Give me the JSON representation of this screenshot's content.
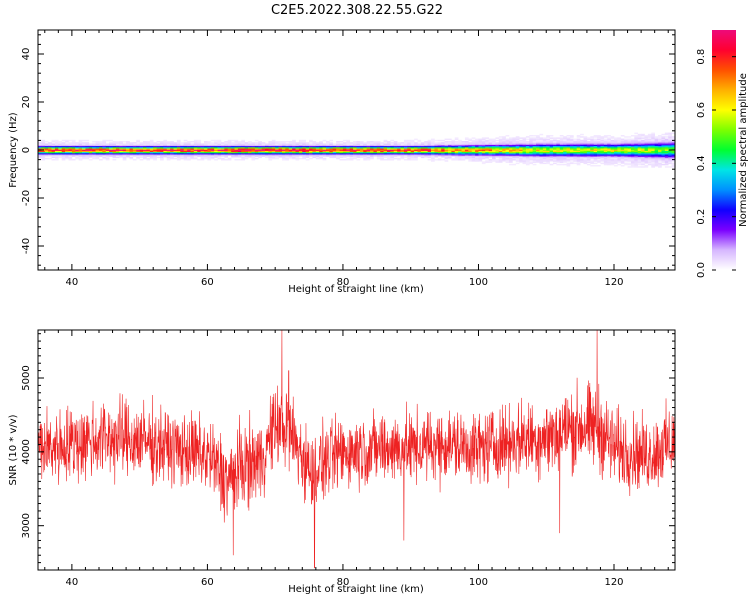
{
  "figure": {
    "title": "C2E5.2022.308.22.55.G22"
  },
  "colors": {
    "snr_line": "#ee2222",
    "axis": "#000000",
    "colormap": [
      "#ffffff",
      "#d6b6ff",
      "#7b00ff",
      "#1000ff",
      "#0090ff",
      "#00e5e5",
      "#00ff30",
      "#7dff00",
      "#ffff00",
      "#ffb000",
      "#ff5000",
      "#ff0030",
      "#ee0a7a"
    ]
  },
  "chart_data": [
    {
      "type": "heatmap",
      "title": "",
      "xlabel": "Height of straight line (km)",
      "ylabel": "Frequency (Hz)",
      "xlim": [
        35,
        129
      ],
      "ylim": [
        -50,
        50
      ],
      "xticks": [
        40,
        60,
        80,
        100,
        120
      ],
      "yticks": [
        -40,
        -20,
        0,
        20,
        40
      ],
      "colorbar": {
        "label": "Normalized spectral amplitude",
        "range": [
          0.0,
          0.9
        ],
        "ticks": [
          0.0,
          0.2,
          0.4,
          0.6,
          0.8
        ]
      },
      "description_of_signal": "narrow band centered at 0 Hz across all heights",
      "band_center_hz": 0,
      "band": [
        {
          "height_km": 35,
          "halfwidth_hz": 2,
          "peak_amp": 0.8
        },
        {
          "height_km": 50,
          "halfwidth_hz": 2,
          "peak_amp": 0.8
        },
        {
          "height_km": 70,
          "halfwidth_hz": 2,
          "peak_amp": 0.85
        },
        {
          "height_km": 90,
          "halfwidth_hz": 2,
          "peak_amp": 0.8
        },
        {
          "height_km": 110,
          "halfwidth_hz": 3,
          "peak_amp": 0.6
        },
        {
          "height_km": 120,
          "halfwidth_hz": 3,
          "peak_amp": 0.6
        },
        {
          "height_km": 129,
          "halfwidth_hz": 4,
          "peak_amp": 0.5
        }
      ]
    },
    {
      "type": "line",
      "title": "",
      "xlabel": "Height of straight line (km)",
      "ylabel": "SNR (10 * v/v)",
      "xlim": [
        35,
        129
      ],
      "ylim": [
        2400,
        5650
      ],
      "xticks": [
        40,
        60,
        80,
        100,
        120
      ],
      "yticks": [
        3000,
        4000,
        5000
      ],
      "series": [
        {
          "x": [
            35,
            40,
            45,
            50,
            55,
            60,
            63,
            65,
            68,
            70,
            72,
            75,
            80,
            85,
            90,
            95,
            100,
            105,
            110,
            115,
            118,
            120,
            125,
            129
          ],
          "y": [
            4050,
            4100,
            4200,
            4150,
            4050,
            3950,
            3600,
            3800,
            3900,
            4350,
            4300,
            3750,
            4000,
            4050,
            4050,
            4100,
            4050,
            4150,
            4200,
            4350,
            4300,
            4050,
            3950,
            4150
          ],
          "spread": [
            500,
            550,
            550,
            550,
            500,
            550,
            600,
            600,
            550,
            550,
            600,
            550,
            500,
            500,
            500,
            500,
            500,
            500,
            550,
            600,
            600,
            550,
            500,
            550
          ],
          "spikes": [
            {
              "x": 71,
              "y": 5650
            },
            {
              "x": 75.8,
              "y": 2430
            },
            {
              "x": 63.8,
              "y": 2600
            },
            {
              "x": 117.5,
              "y": 5650
            },
            {
              "x": 72,
              "y": 5100
            },
            {
              "x": 89,
              "y": 2800
            },
            {
              "x": 112,
              "y": 2900
            }
          ]
        }
      ]
    }
  ]
}
